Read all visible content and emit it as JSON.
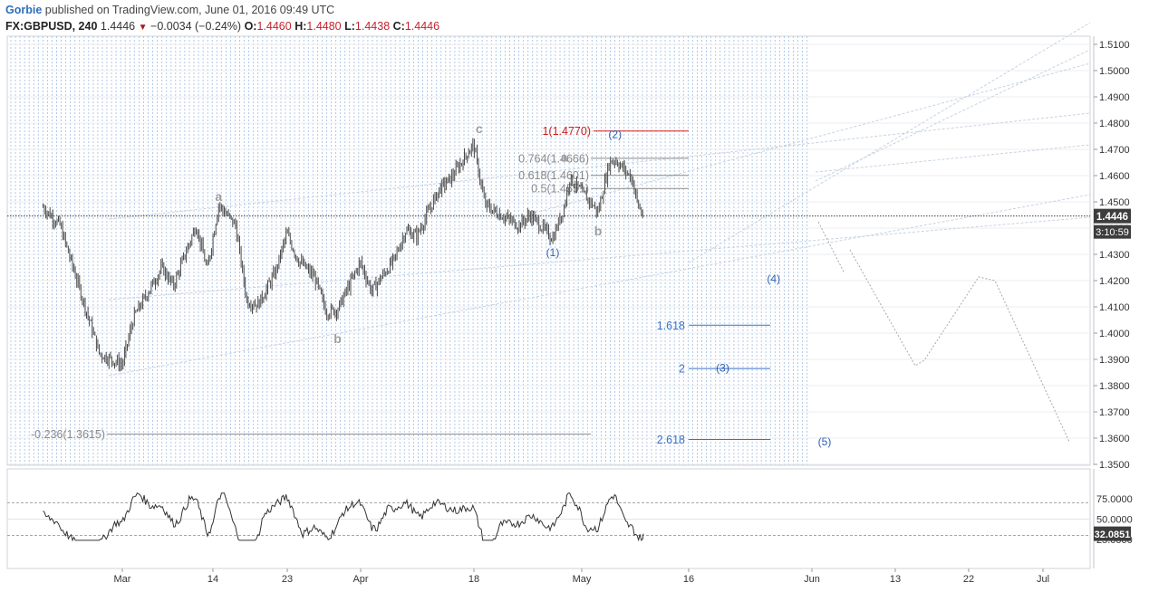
{
  "header": {
    "author": "Gorbie",
    "published": "published on TradingView.com, June 01, 2016 09:49 UTC",
    "symbol": "FX:GBPUSD, 240",
    "last": "1.4446",
    "change": "−0.0034 (−0.24%)",
    "open_label": "O:",
    "open": "1.4460",
    "high_label": "H:",
    "high": "1.4480",
    "low_label": "L:",
    "low": "1.4438",
    "close_label": "C:",
    "close": "1.4446"
  },
  "price_badge": "1.4446",
  "countdown_badge": "3:10:59",
  "rsi_badge": "32.0851",
  "chart_data": [
    {
      "type": "candlestick",
      "symbol": "GBPUSD",
      "timeframe": "240",
      "ylim": [
        1.35,
        1.51
      ],
      "y_ticks": [
        "1.3500",
        "1.3600",
        "1.3700",
        "1.3800",
        "1.3900",
        "1.4000",
        "1.4100",
        "1.4200",
        "1.4300",
        "1.4400",
        "1.4500",
        "1.4600",
        "1.4700",
        "1.4800",
        "1.4900",
        "1.5000",
        "1.5100"
      ],
      "x_ticks": [
        "Mar",
        "14",
        "23",
        "Apr",
        "18",
        "May",
        "16",
        "Jun",
        "13",
        "22",
        "Jul"
      ],
      "approx_path": [
        [
          "Feb 16",
          1.448
        ],
        [
          "Feb 19",
          1.441
        ],
        [
          "Feb 23",
          1.413
        ],
        [
          "Feb 26",
          1.392
        ],
        [
          "Mar 1",
          1.388
        ],
        [
          "Mar 3",
          1.406
        ],
        [
          "Mar 8",
          1.425
        ],
        [
          "Mar 10",
          1.418
        ],
        [
          "Mar 14",
          1.441
        ],
        [
          "Mar 16",
          1.424
        ],
        [
          "Mar 18",
          1.449
        ],
        [
          "Mar 21",
          1.441
        ],
        [
          "Mar 23",
          1.412
        ],
        [
          "Mar 25",
          1.411
        ],
        [
          "Mar 28",
          1.423
        ],
        [
          "Mar 30",
          1.438
        ],
        [
          "Apr 1",
          1.428
        ],
        [
          "Apr 4",
          1.421
        ],
        [
          "Apr 6",
          1.408
        ],
        [
          "Apr 8",
          1.409
        ],
        [
          "Apr 12",
          1.427
        ],
        [
          "Apr 14",
          1.416
        ],
        [
          "Apr 18",
          1.428
        ],
        [
          "Apr 20",
          1.439
        ],
        [
          "Apr 22",
          1.437
        ],
        [
          "Apr 26",
          1.455
        ],
        [
          "Apr 28",
          1.459
        ],
        [
          "May 2",
          1.472
        ],
        [
          "May 4",
          1.449
        ],
        [
          "May 6",
          1.446
        ],
        [
          "May 10",
          1.441
        ],
        [
          "May 12",
          1.445
        ],
        [
          "May 16",
          1.436
        ],
        [
          "May 18",
          1.448
        ],
        [
          "May 19",
          1.459
        ],
        [
          "May 23",
          1.449
        ],
        [
          "May 24",
          1.446
        ],
        [
          "May 26",
          1.465
        ],
        [
          "May 27",
          1.466
        ],
        [
          "May 30",
          1.459
        ],
        [
          "May 31",
          1.449
        ],
        [
          "Jun 1",
          1.4446
        ]
      ],
      "waves": [
        {
          "label": "a",
          "date": "Mar 18",
          "price": 1.452,
          "color": "#9e9e9e"
        },
        {
          "label": "b",
          "date": "Apr 8",
          "price": 1.398,
          "color": "#9e9e9e"
        },
        {
          "label": "c",
          "date": "May 3",
          "price": 1.478,
          "color": "#9e9e9e"
        },
        {
          "label": "(1)",
          "date": "May 16",
          "price": 1.431,
          "color": "#2f5fb3"
        },
        {
          "label": "a",
          "date": "May 18",
          "price": 1.467,
          "color": "#9e9e9e"
        },
        {
          "label": "b",
          "date": "May 24",
          "price": 1.439,
          "color": "#9e9e9e"
        },
        {
          "label": "(2)",
          "date": "May 27",
          "price": 1.476,
          "color": "#2f5fb3"
        },
        {
          "label": "(3)",
          "date": "Jun 15",
          "price": 1.387,
          "color": "#2f5fb3"
        },
        {
          "label": "(4)",
          "date": "Jun 24",
          "price": 1.421,
          "color": "#2f5fb3"
        },
        {
          "label": "(5)",
          "date": "Jul 3",
          "price": 1.359,
          "color": "#2f5fb3"
        }
      ],
      "fib_levels": [
        {
          "label": "1(1.4770)",
          "price": 1.477,
          "color": "#d11d1d"
        },
        {
          "label": "0.764(1.4666)",
          "price": 1.4666,
          "color": "#8a8a8a"
        },
        {
          "label": "0.618(1.4601)",
          "price": 1.4601,
          "color": "#8a8a8a"
        },
        {
          "label": "0.5(1.4551)",
          "price": 1.4551,
          "color": "#8a8a8a"
        },
        {
          "label": "-0.236(1.3615)",
          "price": 1.3615,
          "color": "#8a8a8a"
        },
        {
          "label": "1.618",
          "price": 1.403,
          "color": "#3a72c4"
        },
        {
          "label": "2",
          "price": 1.3865,
          "color": "#3a72c4"
        },
        {
          "label": "2.618",
          "price": 1.3595,
          "color": "#3a72c4"
        }
      ],
      "last_price": 1.4446
    },
    {
      "type": "line",
      "name": "RSI",
      "ylim": [
        20,
        95
      ],
      "y_ticks": [
        "25.0000",
        "50.0000",
        "75.0000"
      ],
      "levels": [
        30,
        70
      ],
      "last_value": 32.0851
    }
  ]
}
